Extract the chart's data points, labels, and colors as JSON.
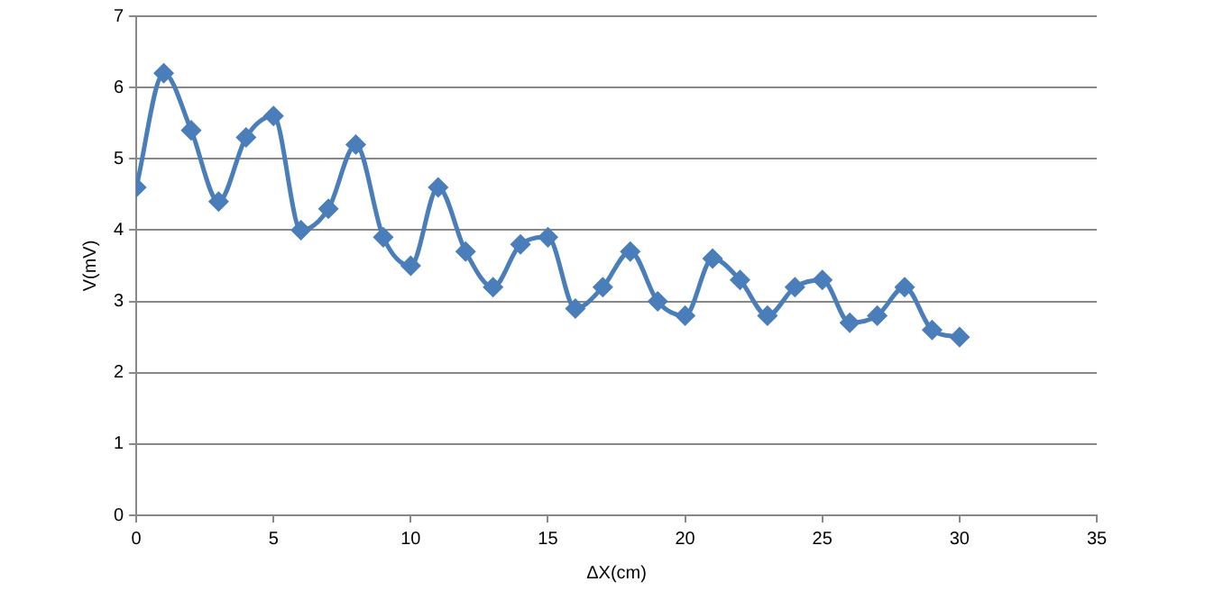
{
  "chart_data": {
    "type": "line",
    "xlabel": "ΔX(cm)",
    "ylabel": "V(mV)",
    "x": [
      0,
      1,
      2,
      3,
      4,
      5,
      6,
      7,
      8,
      9,
      10,
      11,
      12,
      13,
      14,
      15,
      16,
      17,
      18,
      19,
      20,
      21,
      22,
      23,
      24,
      25,
      26,
      27,
      28,
      29,
      30
    ],
    "series": [
      {
        "color": "#4a7ebb",
        "values": [
          4.6,
          6.2,
          5.4,
          4.4,
          5.3,
          5.6,
          4.0,
          4.3,
          5.2,
          3.9,
          3.5,
          4.6,
          3.7,
          3.2,
          3.8,
          3.9,
          2.9,
          3.2,
          3.7,
          3.0,
          2.8,
          3.6,
          3.3,
          2.8,
          3.2,
          3.3,
          2.7,
          2.8,
          3.2,
          2.6,
          2.5
        ]
      }
    ],
    "xlim": [
      0,
      35
    ],
    "xticks": [
      0,
      5,
      10,
      15,
      20,
      25,
      30,
      35
    ],
    "ylim": [
      0,
      7
    ],
    "yticks": [
      0,
      1,
      2,
      3,
      4,
      5,
      6,
      7
    ],
    "grid": "y",
    "legend": false,
    "marker": "diamond",
    "line_style": "solid"
  }
}
